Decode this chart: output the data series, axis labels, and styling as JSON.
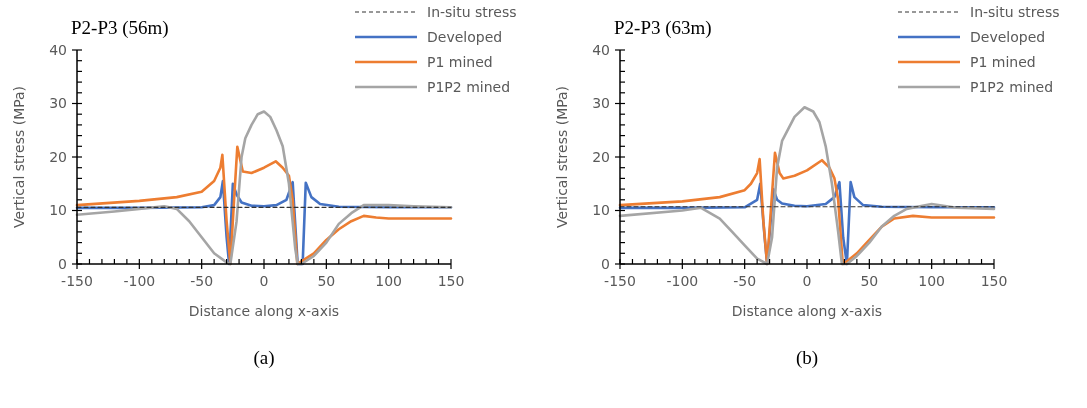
{
  "chart_data": [
    {
      "type": "line",
      "title": "P2-P3 (56m)",
      "xlabel": "Distance along x-axis",
      "ylabel": "Vertical stress (MPa)",
      "annotations": [
        "(a)"
      ],
      "legend": "top right",
      "grid": false,
      "xlim": [
        -150,
        150
      ],
      "ylim": [
        0,
        40
      ],
      "xticks": [
        -150,
        {
          "value": -140,
          "label": null
        },
        {
          "value": -130,
          "label": null
        },
        {
          "value": -120,
          "label": null
        },
        {
          "value": -110,
          "label": null
        },
        -100,
        {
          "value": -90,
          "label": null
        },
        {
          "value": -80,
          "label": null
        },
        {
          "value": -70,
          "label": null
        },
        {
          "value": -60,
          "label": null
        },
        -50,
        {
          "value": -40,
          "label": null
        },
        {
          "value": -30,
          "label": null
        },
        {
          "value": -20,
          "label": null
        },
        {
          "value": -10,
          "label": null
        },
        0,
        {
          "value": 10,
          "label": null
        },
        {
          "value": 20,
          "label": null
        },
        {
          "value": 30,
          "label": null
        },
        {
          "value": 40,
          "label": null
        },
        50,
        {
          "value": 60,
          "label": null
        },
        {
          "value": 70,
          "label": null
        },
        {
          "value": 80,
          "label": null
        },
        {
          "value": 90,
          "label": null
        },
        100,
        {
          "value": 110,
          "label": null
        },
        {
          "value": 120,
          "label": null
        },
        {
          "value": 130,
          "label": null
        },
        {
          "value": 140,
          "label": null
        },
        150
      ],
      "yticks": [
        0,
        {
          "value": 2,
          "label": null
        },
        {
          "value": 4,
          "label": null
        },
        {
          "value": 6,
          "label": null
        },
        {
          "value": 8,
          "label": null
        },
        10,
        {
          "value": 12,
          "label": null
        },
        {
          "value": 14,
          "label": null
        },
        {
          "value": 16,
          "label": null
        },
        {
          "value": 18,
          "label": null
        },
        20,
        {
          "value": 22,
          "label": null
        },
        {
          "value": 24,
          "label": null
        },
        {
          "value": 26,
          "label": null
        },
        {
          "value": 28,
          "label": null
        },
        30,
        {
          "value": 32,
          "label": null
        },
        {
          "value": 34,
          "label": null
        },
        {
          "value": 36,
          "label": null
        },
        {
          "value": 38,
          "label": null
        },
        40
      ],
      "series": [
        {
          "name": "In-situ stress",
          "color": "#333333",
          "line_style": "dashed",
          "x": [
            -150,
            150
          ],
          "values": [
            10.6,
            10.6
          ]
        },
        {
          "name": "Developed",
          "color": "#4472c4",
          "x": [
            -150,
            -100,
            -50,
            -40,
            -35,
            -33,
            -30,
            -28,
            -25,
            -22,
            -18,
            -10,
            0,
            10,
            18,
            23,
            27,
            31,
            33.5,
            38,
            45,
            60,
            100,
            150
          ],
          "values": [
            10.5,
            10.5,
            10.6,
            11,
            12.5,
            15.5,
            5,
            0,
            15,
            13,
            11.5,
            10.9,
            10.8,
            11,
            12,
            15.3,
            0,
            0,
            15.2,
            12.5,
            11.2,
            10.7,
            10.6,
            10.6
          ]
        },
        {
          "name": "P1 mined",
          "color": "#ed7d31",
          "x": [
            -150,
            -100,
            -70,
            -50,
            -40,
            -35,
            -33.4,
            -30,
            -27,
            -24,
            -21.4,
            -17,
            -10,
            0,
            9.4,
            15,
            20,
            23,
            26.7,
            30,
            40,
            50,
            60,
            70,
            80,
            90,
            100,
            120,
            150
          ],
          "values": [
            11,
            11.8,
            12.5,
            13.5,
            15.5,
            18,
            20.4,
            8,
            0,
            12,
            21.9,
            17.3,
            17,
            18,
            19.2,
            18,
            16.5,
            12,
            0,
            0.5,
            2,
            4.5,
            6.5,
            8,
            9,
            8.7,
            8.5,
            8.5,
            8.5
          ]
        },
        {
          "name": "P1P2 mined",
          "color": "#a5a5a5",
          "x": [
            -150,
            -120,
            -100,
            -80,
            -70,
            -60,
            -50,
            -40,
            -30,
            -27,
            -22,
            -18,
            -15,
            -10,
            -5,
            0,
            5,
            10,
            15,
            20,
            25,
            27,
            30,
            40,
            50,
            60,
            70,
            80,
            100,
            120,
            150
          ],
          "values": [
            9.2,
            9.8,
            10.3,
            10.8,
            10.3,
            8,
            5,
            2,
            0.3,
            0,
            8,
            20,
            23.5,
            26,
            28,
            28.5,
            27.5,
            25,
            22,
            15,
            3,
            0,
            0,
            1.5,
            4,
            7.5,
            9.5,
            11,
            11,
            10.8,
            10.6
          ]
        }
      ]
    },
    {
      "type": "line",
      "title": "P2-P3 (63m)",
      "xlabel": "Distance along x-axis",
      "ylabel": "Vertical stress (MPa)",
      "annotations": [
        "(b)"
      ],
      "legend": "top right",
      "grid": false,
      "xlim": [
        -150,
        150
      ],
      "ylim": [
        0,
        40
      ],
      "xticks": [
        -150,
        {
          "value": -140,
          "label": null
        },
        {
          "value": -130,
          "label": null
        },
        {
          "value": -120,
          "label": null
        },
        {
          "value": -110,
          "label": null
        },
        -100,
        {
          "value": -90,
          "label": null
        },
        {
          "value": -80,
          "label": null
        },
        {
          "value": -70,
          "label": null
        },
        {
          "value": -60,
          "label": null
        },
        -50,
        {
          "value": -40,
          "label": null
        },
        {
          "value": -30,
          "label": null
        },
        {
          "value": -20,
          "label": null
        },
        {
          "value": -10,
          "label": null
        },
        0,
        {
          "value": 10,
          "label": null
        },
        {
          "value": 20,
          "label": null
        },
        {
          "value": 30,
          "label": null
        },
        {
          "value": 40,
          "label": null
        },
        50,
        {
          "value": 60,
          "label": null
        },
        {
          "value": 70,
          "label": null
        },
        {
          "value": 80,
          "label": null
        },
        {
          "value": 90,
          "label": null
        },
        100,
        {
          "value": 110,
          "label": null
        },
        {
          "value": 120,
          "label": null
        },
        {
          "value": 130,
          "label": null
        },
        {
          "value": 140,
          "label": null
        },
        150
      ],
      "yticks": [
        0,
        {
          "value": 2,
          "label": null
        },
        {
          "value": 4,
          "label": null
        },
        {
          "value": 6,
          "label": null
        },
        {
          "value": 8,
          "label": null
        },
        10,
        {
          "value": 12,
          "label": null
        },
        {
          "value": 14,
          "label": null
        },
        {
          "value": 16,
          "label": null
        },
        {
          "value": 18,
          "label": null
        },
        20,
        {
          "value": 22,
          "label": null
        },
        {
          "value": 24,
          "label": null
        },
        {
          "value": 26,
          "label": null
        },
        {
          "value": 28,
          "label": null
        },
        30,
        {
          "value": 32,
          "label": null
        },
        {
          "value": 34,
          "label": null
        },
        {
          "value": 36,
          "label": null
        },
        {
          "value": 38,
          "label": null
        },
        40
      ],
      "series": [
        {
          "name": "In-situ stress",
          "color": "#333333",
          "line_style": "dashed",
          "x": [
            -150,
            150
          ],
          "values": [
            10.7,
            10.7
          ]
        },
        {
          "name": "Developed",
          "color": "#4472c4",
          "x": [
            -150,
            -100,
            -50,
            -40,
            -37.5,
            -34,
            -32,
            -27,
            -24,
            -20,
            -10,
            0,
            15,
            22,
            26,
            29,
            32,
            35,
            38,
            45,
            60,
            100,
            150
          ],
          "values": [
            10.5,
            10.5,
            10.6,
            12,
            15,
            5,
            0,
            14,
            12,
            11.3,
            10.9,
            10.8,
            11.2,
            12.5,
            15.3,
            5,
            0,
            15.3,
            12.5,
            11,
            10.7,
            10.6,
            10.6
          ]
        },
        {
          "name": "P1 mined",
          "color": "#ed7d31",
          "x": [
            -150,
            -100,
            -70,
            -50,
            -45,
            -40,
            -38,
            -35,
            -32,
            -29,
            -25.7,
            -22,
            -19,
            -10,
            0,
            12,
            18,
            22,
            25,
            28.7,
            32,
            40,
            50,
            60,
            70,
            85,
            100,
            150
          ],
          "values": [
            11,
            11.7,
            12.5,
            13.8,
            15,
            17,
            19.6,
            8,
            0,
            10,
            20.8,
            17,
            16,
            16.5,
            17.5,
            19.4,
            18,
            16,
            12,
            0,
            0.5,
            2,
            4.5,
            7,
            8.5,
            9,
            8.7,
            8.7
          ]
        },
        {
          "name": "P1P2 mined",
          "color": "#a5a5a5",
          "x": [
            -150,
            -100,
            -85,
            -70,
            -60,
            -50,
            -40,
            -32,
            -28,
            -24,
            -20,
            -10,
            -2,
            5,
            10,
            15,
            20,
            25,
            28,
            32,
            40,
            50,
            60,
            70,
            80,
            100,
            120,
            150
          ],
          "values": [
            9,
            10,
            10.5,
            8.5,
            6,
            3.5,
            1,
            0,
            5,
            18,
            23,
            27.5,
            29.3,
            28.5,
            26.5,
            22,
            15,
            6,
            0,
            0,
            1.5,
            4,
            7,
            9,
            10.3,
            11.2,
            10.5,
            10.3
          ]
        }
      ]
    }
  ]
}
